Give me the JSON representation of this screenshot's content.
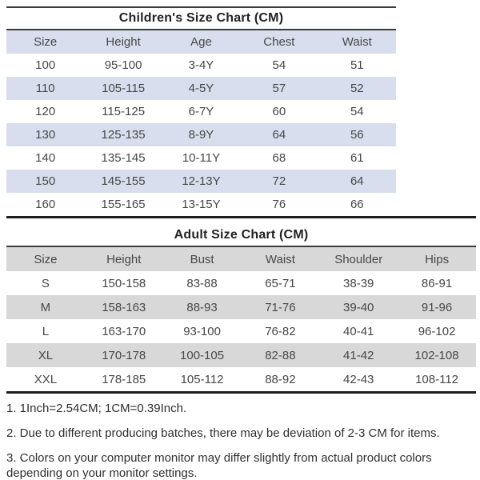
{
  "children_table": {
    "title": "Children's Size Chart (CM)",
    "headers": [
      "Size",
      "Height",
      "Age",
      "Chest",
      "Waist"
    ],
    "rows": [
      [
        "100",
        "95-100",
        "3-4Y",
        "54",
        "51"
      ],
      [
        "110",
        "105-115",
        "4-5Y",
        "57",
        "52"
      ],
      [
        "120",
        "115-125",
        "6-7Y",
        "60",
        "54"
      ],
      [
        "130",
        "125-135",
        "8-9Y",
        "64",
        "56"
      ],
      [
        "140",
        "135-145",
        "10-11Y",
        "68",
        "61"
      ],
      [
        "150",
        "145-155",
        "12-13Y",
        "72",
        "64"
      ],
      [
        "160",
        "155-165",
        "13-15Y",
        "76",
        "66"
      ]
    ]
  },
  "adult_table": {
    "title": "Adult Size Chart (CM)",
    "headers": [
      "Size",
      "Height",
      "Bust",
      "Waist",
      "Shoulder",
      "Hips"
    ],
    "rows": [
      [
        "S",
        "150-158",
        "83-88",
        "65-71",
        "38-39",
        "86-91"
      ],
      [
        "M",
        "158-163",
        "88-93",
        "71-76",
        "39-40",
        "91-96"
      ],
      [
        "L",
        "163-170",
        "93-100",
        "76-82",
        "40-41",
        "96-102"
      ],
      [
        "XL",
        "170-178",
        "100-105",
        "82-88",
        "41-42",
        "102-108"
      ],
      [
        "XXL",
        "178-185",
        "105-112",
        "88-92",
        "42-43",
        "108-112"
      ]
    ]
  },
  "notes": [
    "1. 1Inch=2.54CM; 1CM=0.39Inch.",
    "2. Due to different producing batches, there may be deviation of 2-3 CM for items.",
    "3. Colors on your computer monitor may differ slightly from actual product colors depending on your monitor settings."
  ],
  "colors": {
    "children_band": "#d8deee",
    "adult_band": "#d8d8d8",
    "rule_dark": "#1e1e1e",
    "table_text": "#474747",
    "title_text": "#222222"
  }
}
